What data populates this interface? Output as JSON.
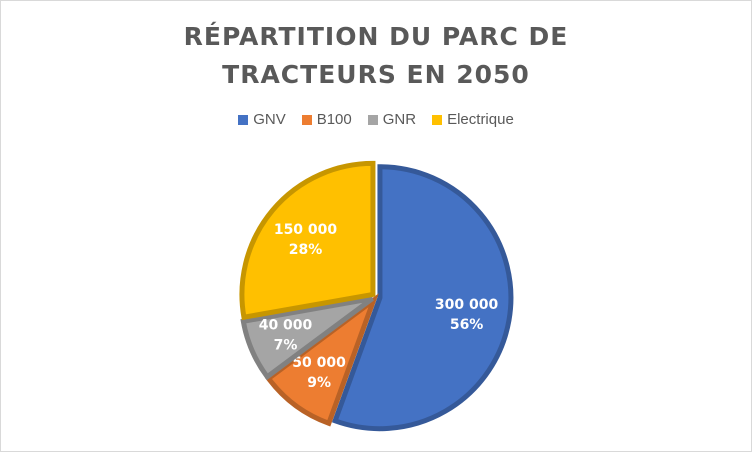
{
  "chart_data": {
    "type": "pie",
    "title": "RÉPARTITION DU PARC DE TRACTEURS EN 2050",
    "legend_position": "top",
    "categories": [
      "GNV",
      "B100",
      "GNR",
      "Electrique"
    ],
    "values": [
      300000,
      50000,
      40000,
      150000
    ],
    "value_labels": [
      "300 000",
      "50 000",
      "40 000",
      "150 000"
    ],
    "percent_labels": [
      "56%",
      "9%",
      "7%",
      "28%"
    ],
    "colors": [
      "#4472C4",
      "#ED7D31",
      "#A5A5A5",
      "#FFC000"
    ],
    "exploded": true
  }
}
